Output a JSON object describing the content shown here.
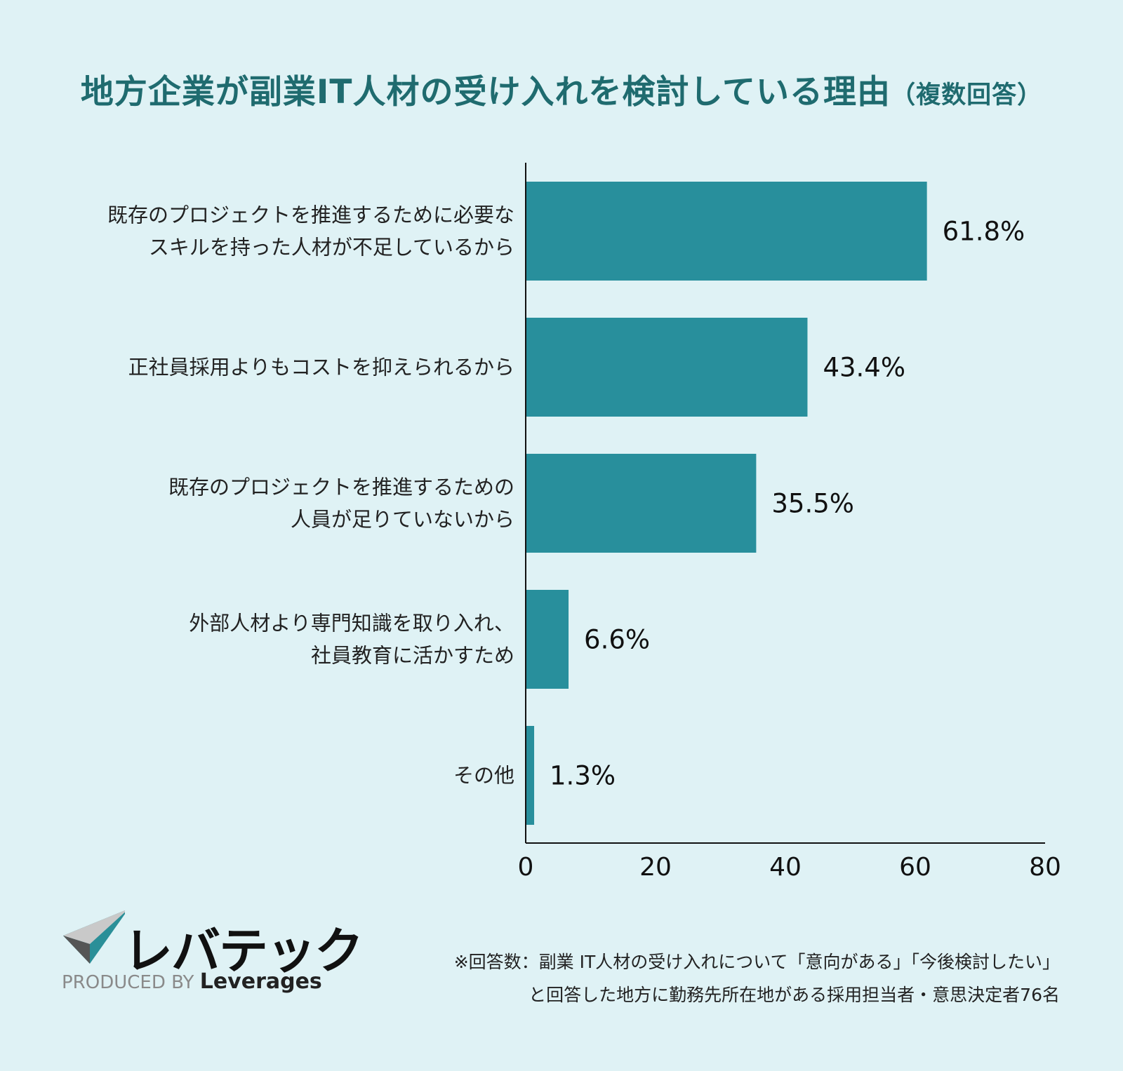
{
  "title": {
    "main": "地方企業が副業IT人材の受け入れを検討している理由",
    "sub": "（複数回答）"
  },
  "chart_data": {
    "type": "bar",
    "orientation": "horizontal",
    "categories": [
      [
        "既存のプロジェクトを推進するために必要な",
        "スキルを持った人材が不足しているから"
      ],
      [
        "正社員採用よりもコストを抑えられるから"
      ],
      [
        "既存のプロジェクトを推進するための",
        "人員が足りていないから"
      ],
      [
        "外部人材より専門知識を取り入れ、",
        "社員教育に活かすため"
      ],
      [
        "その他"
      ]
    ],
    "values": [
      61.8,
      43.4,
      35.5,
      6.6,
      1.3
    ],
    "value_labels": [
      "61.8%",
      "43.4%",
      "35.5%",
      "6.6%",
      "1.3%"
    ],
    "xlim": [
      0,
      80
    ],
    "xticks": [
      "0",
      "20",
      "40",
      "60",
      "80"
    ],
    "bar_color": "#288f9c",
    "grid": false
  },
  "logo": {
    "name": "レバテック",
    "produced_by": "PRODUCED BY",
    "company": "Leverages"
  },
  "footnote": {
    "lines": [
      "※回答数：副業 IT人材の受け入れについて「意向がある」「今後検討したい」",
      "と回答した地方に勤務先所在地がある採用担当者・意思決定者76名"
    ]
  }
}
